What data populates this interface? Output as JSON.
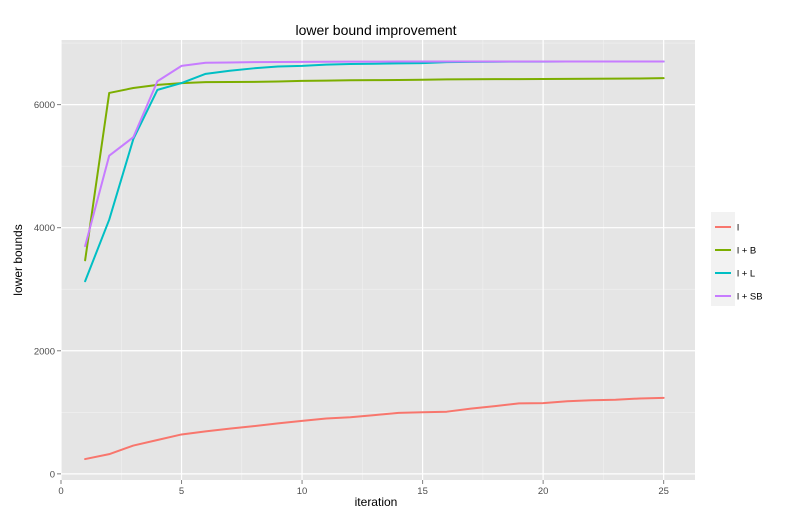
{
  "chart_data": {
    "type": "line",
    "title": "lower bound improvement",
    "xlabel": "iteration",
    "ylabel": "lower bounds",
    "xlim": [
      0,
      26.3
    ],
    "ylim": [
      -100,
      7050
    ],
    "xticks": [
      0,
      5,
      10,
      15,
      20,
      25
    ],
    "yticks": [
      0,
      2000,
      4000,
      6000
    ],
    "xtick_labels": [
      "0",
      "5",
      "10",
      "15",
      "20",
      "25"
    ],
    "ytick_labels": [
      "0",
      "2000",
      "4000",
      "6000"
    ],
    "grid": true,
    "legend_position": "right",
    "x": [
      1,
      2,
      3,
      4,
      5,
      6,
      7,
      8,
      9,
      10,
      11,
      12,
      13,
      14,
      15,
      16,
      17,
      18,
      19,
      20,
      21,
      22,
      23,
      24,
      25
    ],
    "series": [
      {
        "name": "l",
        "color": "#F8766D",
        "values": [
          240,
          320,
          460,
          550,
          640,
          690,
          735,
          775,
          820,
          860,
          900,
          920,
          955,
          990,
          1000,
          1010,
          1060,
          1100,
          1145,
          1150,
          1180,
          1195,
          1205,
          1225,
          1235
        ]
      },
      {
        "name": "l + B",
        "color": "#7CAE00",
        "values": [
          3470,
          6190,
          6270,
          6320,
          6350,
          6365,
          6368,
          6370,
          6375,
          6385,
          6390,
          6395,
          6398,
          6400,
          6405,
          6410,
          6412,
          6414,
          6415,
          6416,
          6418,
          6420,
          6422,
          6425,
          6430
        ]
      },
      {
        "name": "l + L",
        "color": "#00BFC4",
        "values": [
          3130,
          4130,
          5440,
          6240,
          6350,
          6500,
          6550,
          6590,
          6620,
          6630,
          6650,
          6660,
          6665,
          6670,
          6675,
          6690,
          6695,
          6697,
          6698,
          6699,
          6700,
          6700,
          6700,
          6700,
          6700
        ]
      },
      {
        "name": "l + SB",
        "color": "#C77CFF",
        "values": [
          3700,
          5170,
          5470,
          6380,
          6630,
          6680,
          6685,
          6690,
          6693,
          6695,
          6697,
          6698,
          6699,
          6700,
          6700,
          6700,
          6700,
          6700,
          6700,
          6700,
          6700,
          6700,
          6700,
          6700,
          6700
        ]
      }
    ]
  }
}
